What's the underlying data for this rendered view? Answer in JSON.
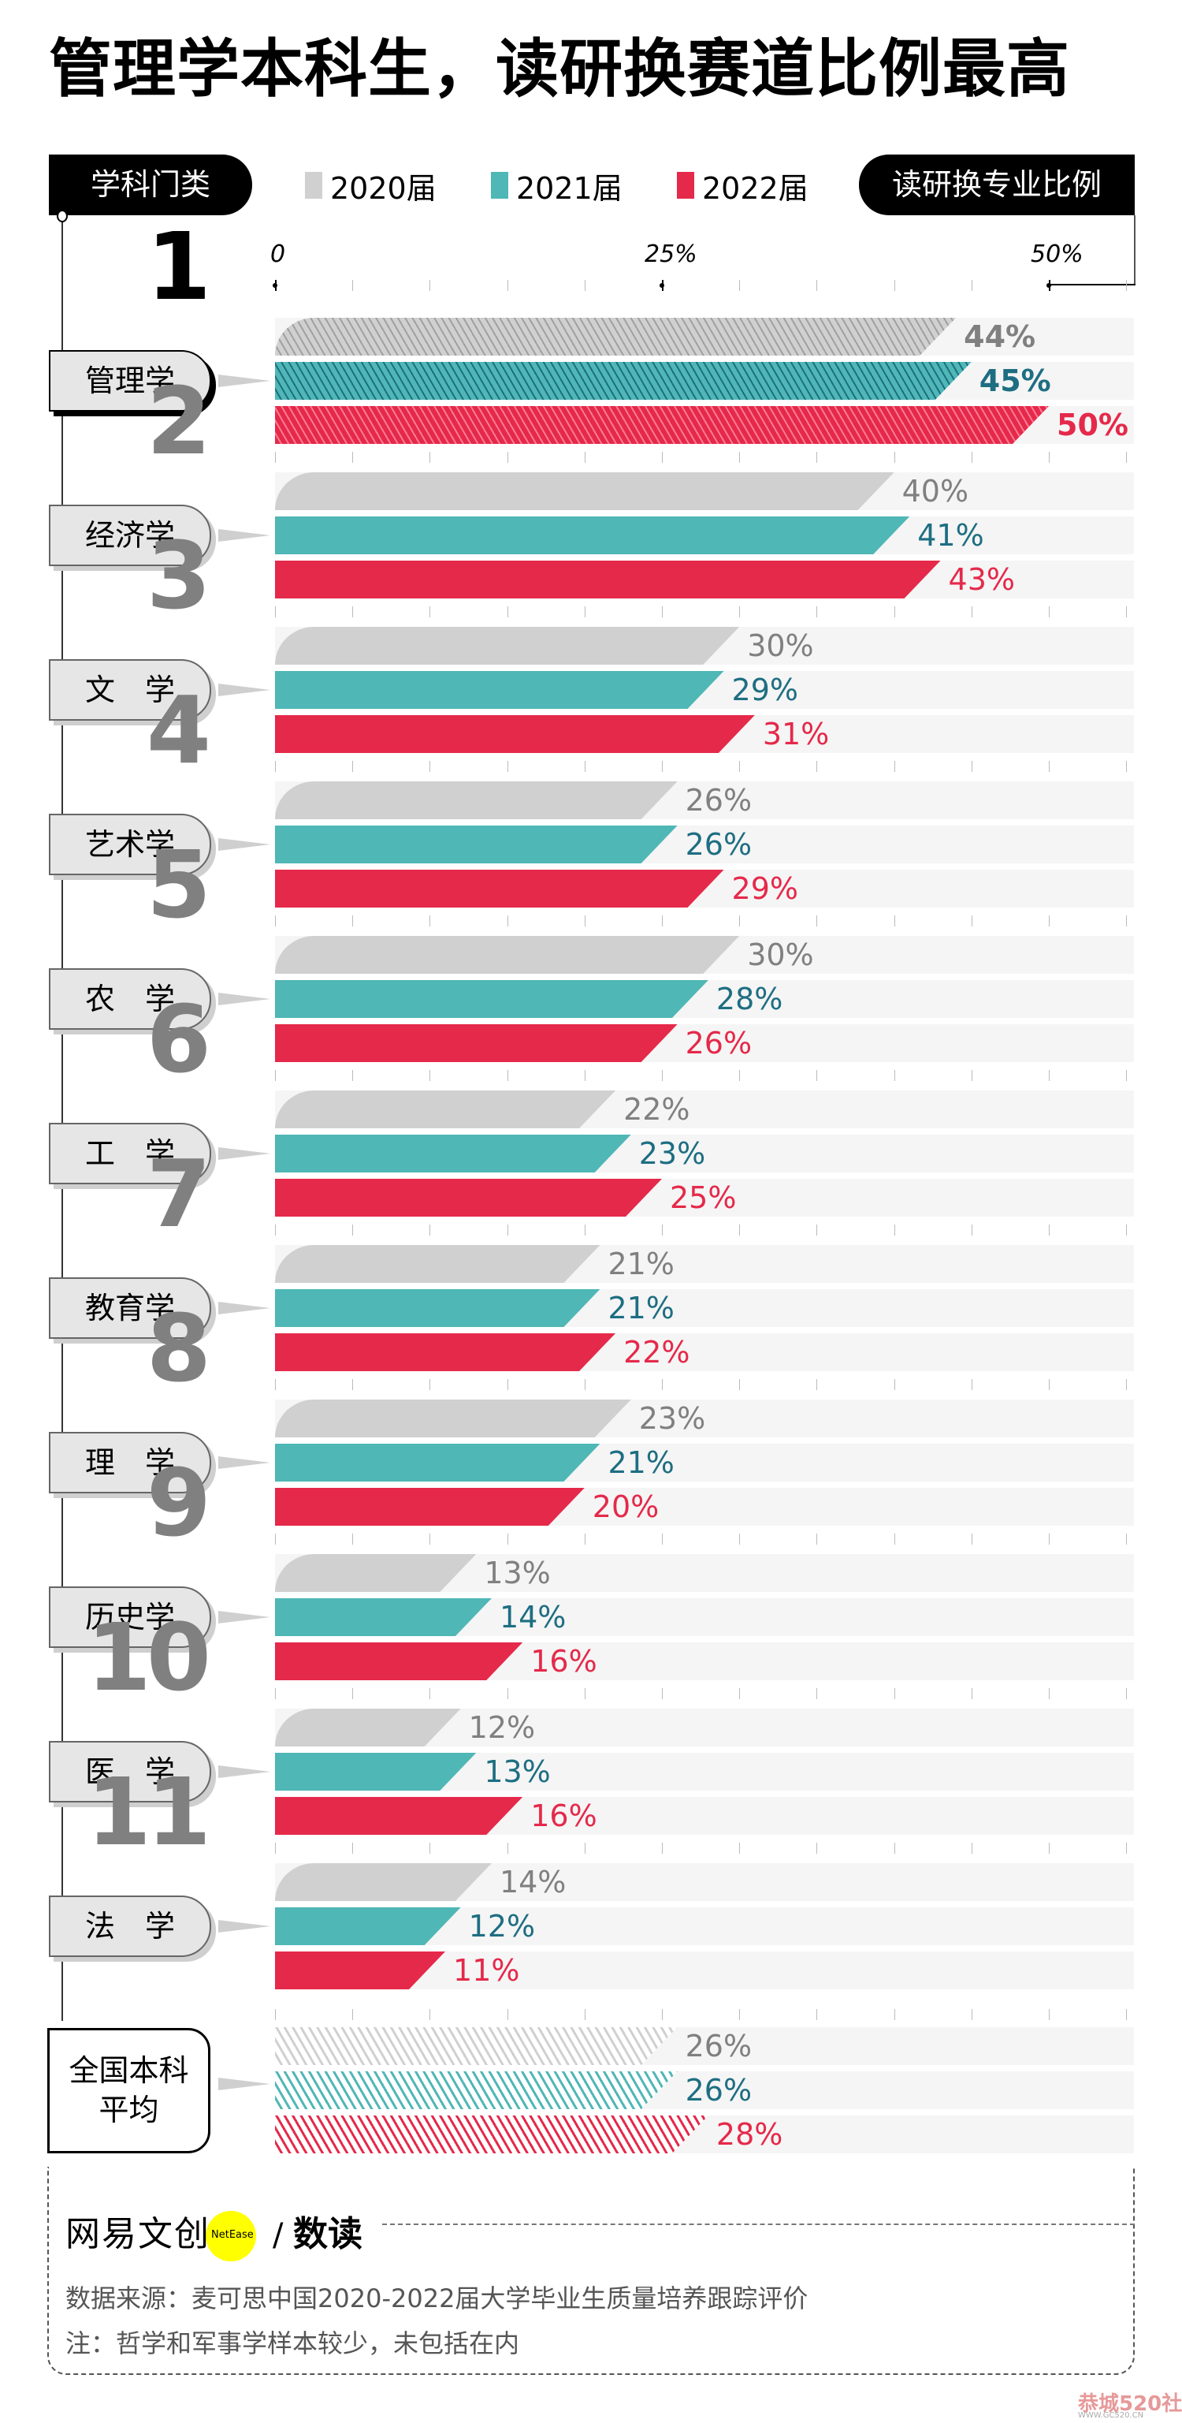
{
  "title": "管理学本科生，读研换赛道比例最高",
  "header": {
    "left_pill": "学科门类",
    "right_pill": "读研换专业比例"
  },
  "legend": [
    {
      "label": "2020届",
      "color": "#D0D0D0"
    },
    {
      "label": "2021届",
      "color": "#4FB7B6"
    },
    {
      "label": "2022届",
      "color": "#E5294A"
    }
  ],
  "axis": {
    "ticks": [
      "0",
      "25%",
      "50%"
    ]
  },
  "colors": {
    "bar_2020": "#D0D0D0",
    "text_2020": "#808080",
    "bar_2021": "#4FB7B6",
    "text_2021": "#1E6E82",
    "bar_2022": "#E5294A",
    "text_2022": "#E5294A",
    "track": "#F5F5F5"
  },
  "categories": [
    {
      "rank": "1",
      "name": "管理学",
      "v2020": "44%",
      "v2021": "45%",
      "v2022": "50%"
    },
    {
      "rank": "2",
      "name": "经济学",
      "v2020": "40%",
      "v2021": "41%",
      "v2022": "43%"
    },
    {
      "rank": "3",
      "name": "文　学",
      "v2020": "30%",
      "v2021": "29%",
      "v2022": "31%"
    },
    {
      "rank": "4",
      "name": "艺术学",
      "v2020": "26%",
      "v2021": "26%",
      "v2022": "29%"
    },
    {
      "rank": "5",
      "name": "农　学",
      "v2020": "30%",
      "v2021": "28%",
      "v2022": "26%"
    },
    {
      "rank": "6",
      "name": "工　学",
      "v2020": "22%",
      "v2021": "23%",
      "v2022": "25%"
    },
    {
      "rank": "7",
      "name": "教育学",
      "v2020": "21%",
      "v2021": "21%",
      "v2022": "22%"
    },
    {
      "rank": "8",
      "name": "理　学",
      "v2020": "23%",
      "v2021": "21%",
      "v2022": "20%"
    },
    {
      "rank": "9",
      "name": "历史学",
      "v2020": "13%",
      "v2021": "14%",
      "v2022": "16%"
    },
    {
      "rank": "10",
      "name": "医　学",
      "v2020": "12%",
      "v2021": "13%",
      "v2022": "16%"
    },
    {
      "rank": "11",
      "name": "法　学",
      "v2020": "14%",
      "v2021": "12%",
      "v2022": "11%"
    }
  ],
  "average": {
    "name_line1": "全国本科",
    "name_line2": "平均",
    "v2020": "26%",
    "v2021": "26%",
    "v2022": "28%"
  },
  "footer": {
    "logo_text": "网易文创",
    "logo_badge": "NetEase",
    "logo_slash": "/",
    "logo_sub": "数读",
    "source": "数据来源：麦可思中国2020-2022届大学毕业生质量培养跟踪评价",
    "note": "注：哲学和军事学样本较少，未包括在内"
  },
  "watermark": {
    "text": "恭城520社区",
    "url": "WWW.GC520.CN"
  },
  "chart_data": {
    "type": "bar",
    "orientation": "horizontal",
    "title": "管理学本科生，读研换赛道比例最高",
    "xlabel": "读研换专业比例",
    "ylabel": "学科门类",
    "xlim": [
      0,
      55
    ],
    "x_ticks": [
      "0",
      "25%",
      "50%"
    ],
    "grid": false,
    "legend_position": "top",
    "categories": [
      "管理学",
      "经济学",
      "文学",
      "艺术学",
      "农学",
      "工学",
      "教育学",
      "理学",
      "历史学",
      "医学",
      "法学",
      "全国本科平均"
    ],
    "series": [
      {
        "name": "2020届",
        "color": "#D0D0D0",
        "values": [
          44,
          40,
          30,
          26,
          30,
          22,
          21,
          23,
          13,
          12,
          14,
          26
        ]
      },
      {
        "name": "2021届",
        "color": "#4FB7B6",
        "values": [
          45,
          41,
          29,
          26,
          28,
          23,
          21,
          21,
          14,
          13,
          12,
          26
        ]
      },
      {
        "name": "2022届",
        "color": "#E5294A",
        "values": [
          50,
          43,
          31,
          29,
          26,
          25,
          22,
          20,
          16,
          16,
          11,
          28
        ]
      }
    ],
    "annotations": [
      "数据来源：麦可思中国2020-2022届大学毕业生质量培养跟踪评价",
      "注：哲学和军事学样本较少，未包括在内"
    ]
  }
}
